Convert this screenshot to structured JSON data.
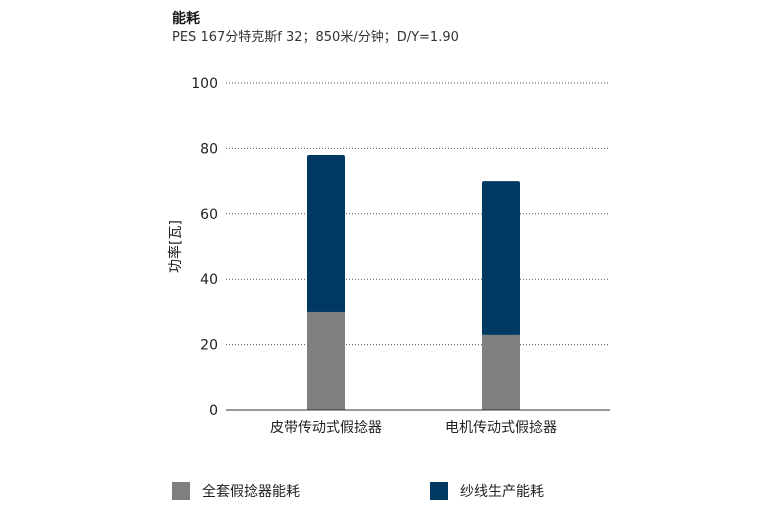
{
  "chart_data": {
    "type": "bar",
    "stacked": true,
    "title": "能耗",
    "subtitle": "PES 167分特克斯f 32；850米/分钟；D/Y=1.90",
    "ylabel": "功率[瓦]",
    "xlabel": "",
    "ylim": [
      0,
      100
    ],
    "yticks": [
      0,
      20,
      40,
      60,
      80,
      100
    ],
    "grid": true,
    "legend_position": "bottom",
    "categories": [
      "皮带传动式假捻器",
      "电机传动式假捻器"
    ],
    "series": [
      {
        "name": "全套假捻器能耗",
        "color": "#7f7f7f",
        "values": [
          30,
          23
        ]
      },
      {
        "name": "纱线生产能耗",
        "color": "#003a63",
        "values": [
          48,
          47
        ]
      }
    ]
  }
}
